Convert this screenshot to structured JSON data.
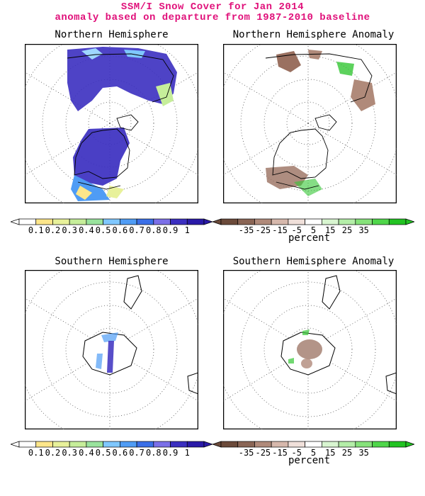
{
  "header": {
    "title_line1": "SSM/I Snow Cover for Jan 2014",
    "title_line2": "anomaly based on departure from 1987-2010 baseline"
  },
  "panels": {
    "nh": {
      "title": "Northern Hemisphere"
    },
    "nh_anom": {
      "title": "Northern Hemisphere Anomaly"
    },
    "sh": {
      "title": "Southern Hemisphere"
    },
    "sh_anom": {
      "title": "Southern Hemisphere Anomaly"
    }
  },
  "colorbars": {
    "fraction": {
      "labels": [
        "0.1",
        "0.2",
        "0.3",
        "0.4",
        "0.5",
        "0.6",
        "0.7",
        "0.8",
        "0.9",
        "1"
      ],
      "colors": [
        "#ffffff",
        "#fde68a",
        "#e8f19a",
        "#c6ee9a",
        "#99e39d",
        "#7fc7ff",
        "#4f9cf5",
        "#3a6fe8",
        "#7b6fe8",
        "#3b2fc0",
        "#2a1aa8"
      ]
    },
    "anomaly": {
      "labels": [
        "-35",
        "-25",
        "-15",
        "-5",
        "5",
        "15",
        "25",
        "35"
      ],
      "colors": [
        "#6b4a3a",
        "#8a6555",
        "#b08a7a",
        "#d6b8ac",
        "#f0e0da",
        "#ffffff",
        "#d8f5d0",
        "#b4eea8",
        "#86e27a",
        "#4fd64a",
        "#22c322"
      ],
      "unit": "percent"
    }
  },
  "colors": {
    "title": "#e0107a",
    "snow_dark": "#3b2fc0",
    "anom_brown": "#9a7060",
    "anom_green": "#34c734"
  }
}
